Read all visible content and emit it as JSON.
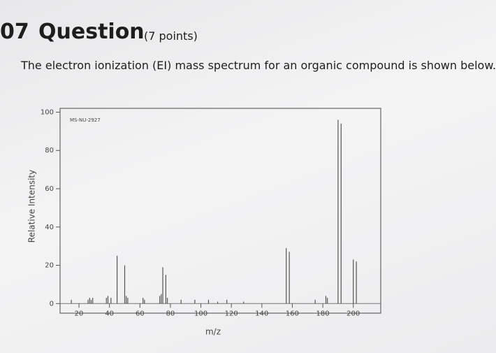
{
  "header": {
    "number": "07",
    "title": "Question",
    "points": "(7 points)",
    "prompt": "The electron ionization (EI) mass spectrum for an organic compound is shown below."
  },
  "chart_data": {
    "type": "bar",
    "annotation": "MS-NU-2927",
    "xlabel": "m/z",
    "ylabel": "Relative Intensity",
    "x": [
      15,
      26,
      27,
      28,
      29,
      38,
      39,
      41,
      45,
      50,
      51,
      52,
      62,
      63,
      73,
      74,
      75,
      77,
      78,
      87,
      96,
      105,
      111,
      117,
      128,
      156,
      158,
      175,
      182,
      183,
      190,
      192,
      200,
      202
    ],
    "values": [
      2,
      2,
      3,
      2,
      3,
      3,
      4,
      3,
      25,
      20,
      4,
      3,
      3,
      2,
      4,
      5,
      19,
      15,
      3,
      2,
      2,
      2,
      1,
      2,
      1,
      29,
      27,
      2,
      4,
      3,
      96,
      94,
      23,
      22
    ],
    "color": "#555555",
    "xlim": [
      7.6,
      218
    ],
    "ylim": [
      -5,
      102
    ],
    "xticks": [
      20,
      40,
      60,
      80,
      100,
      120,
      140,
      160,
      180,
      200
    ],
    "yticks": [
      0,
      20,
      40,
      60,
      80,
      100
    ]
  }
}
